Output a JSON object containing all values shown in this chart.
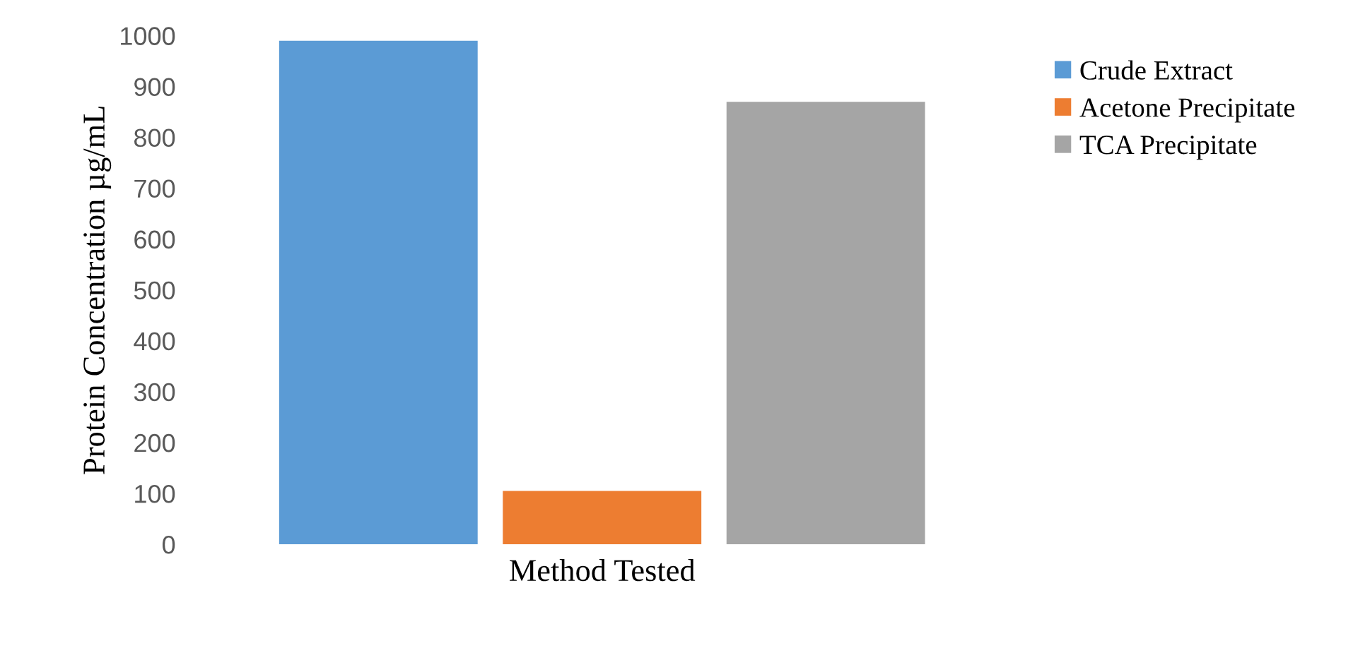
{
  "chart_data": {
    "type": "bar",
    "xlabel": "Method Tested",
    "ylabel": "Protein Concentration µg/mL",
    "categories": [
      null
    ],
    "series": [
      {
        "name": "Crude Extract",
        "color": "#5b9bd5",
        "values": [
          990
        ]
      },
      {
        "name": "Acetone Precipitate",
        "color": "#ed7d31",
        "values": [
          105
        ]
      },
      {
        "name": "TCA Precipitate",
        "color": "#a5a5a5",
        "values": [
          870
        ]
      }
    ],
    "ylim": [
      0,
      1000
    ],
    "yticks": [
      0,
      100,
      200,
      300,
      400,
      500,
      600,
      700,
      800,
      900,
      1000
    ],
    "grid": false,
    "legend": "top right"
  }
}
